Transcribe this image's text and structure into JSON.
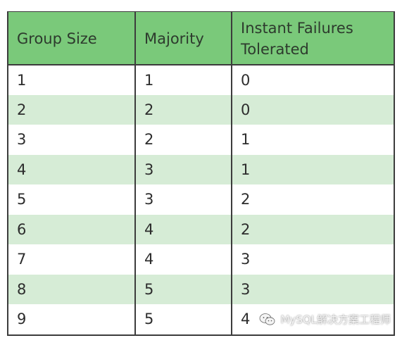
{
  "table": {
    "headers": [
      "Group Size",
      "Majority",
      "Instant Failures\nTolerated"
    ],
    "rows": [
      [
        "1",
        "1",
        "0"
      ],
      [
        "2",
        "2",
        "0"
      ],
      [
        "3",
        "2",
        "1"
      ],
      [
        "4",
        "3",
        "1"
      ],
      [
        "5",
        "3",
        "2"
      ],
      [
        "6",
        "4",
        "2"
      ],
      [
        "7",
        "4",
        "3"
      ],
      [
        "8",
        "5",
        "3"
      ],
      [
        "9",
        "5",
        "4"
      ]
    ]
  },
  "watermark": {
    "text": "MySQL解决方案工程师",
    "icon": "wechat-icon"
  },
  "colors": {
    "header_bg": "#7ac97a",
    "stripe_bg": "#d6ecd6",
    "border": "#3c3c3c"
  }
}
